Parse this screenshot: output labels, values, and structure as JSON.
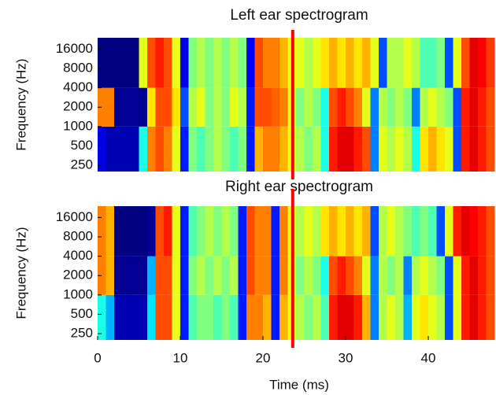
{
  "chart_data": [
    {
      "type": "spectrogram",
      "title": "Left ear spectrogram",
      "ylabel": "Frequency (Hz)",
      "colormap": "jet",
      "log_y": true,
      "xlim": [
        0,
        48
      ],
      "ylim": [
        200,
        24000
      ],
      "yticks": [
        250,
        500,
        1000,
        2000,
        4000,
        8000,
        16000
      ],
      "bins": [
        0,
        1,
        2,
        3,
        4,
        5,
        6,
        7,
        8,
        9,
        10,
        11,
        12,
        13,
        14,
        15,
        16,
        17,
        18,
        19,
        20,
        21,
        22,
        23,
        24,
        25,
        26,
        27,
        28,
        29,
        30,
        31,
        32,
        33,
        34,
        35,
        36,
        37,
        38,
        39,
        40,
        41,
        42,
        43,
        44,
        45,
        46,
        47,
        48
      ],
      "y_edges": [
        200,
        1000,
        4000,
        24000
      ],
      "z": [
        [
          0.1,
          0.05,
          0.05,
          0.05,
          0.05,
          0.4,
          0.75,
          0.8,
          0.75,
          0.6,
          0.15,
          0.5,
          0.45,
          0.5,
          0.55,
          0.5,
          0.45,
          0.5,
          0.15,
          0.7,
          0.75,
          0.75,
          0.7,
          0.6,
          0.55,
          0.5,
          0.55,
          0.4,
          0.85,
          0.9,
          0.9,
          0.85,
          0.8,
          0.25,
          0.6,
          0.55,
          0.6,
          0.55,
          0.4,
          0.65,
          0.7,
          0.65,
          0.6,
          0.2,
          0.85,
          0.9,
          0.85,
          0.8
        ],
        [
          0.75,
          0.75,
          0.02,
          0.02,
          0.02,
          0.02,
          0.65,
          0.8,
          0.8,
          0.65,
          0.2,
          0.55,
          0.6,
          0.5,
          0.55,
          0.5,
          0.6,
          0.55,
          0.15,
          0.8,
          0.8,
          0.78,
          0.75,
          0.6,
          0.5,
          0.55,
          0.5,
          0.4,
          0.8,
          0.85,
          0.8,
          0.75,
          0.6,
          0.25,
          0.55,
          0.5,
          0.55,
          0.5,
          0.25,
          0.55,
          0.6,
          0.55,
          0.5,
          0.2,
          0.85,
          0.9,
          0.85,
          0.8
        ],
        [
          0,
          0,
          0,
          0,
          0,
          0.6,
          0.8,
          0.85,
          0.8,
          0.6,
          0.1,
          0.5,
          0.55,
          0.5,
          0.55,
          0.5,
          0.55,
          0.5,
          0.12,
          0.8,
          0.75,
          0.75,
          0.7,
          0.6,
          0.6,
          0.55,
          0.6,
          0.65,
          0.7,
          0.65,
          0.7,
          0.65,
          0.7,
          0.6,
          0.2,
          0.55,
          0.55,
          0.6,
          0.55,
          0.45,
          0.45,
          0.5,
          0.2,
          0.6,
          0.8,
          0.9,
          0.88,
          0.82
        ]
      ],
      "vline": {
        "x": 23.6,
        "color": "#ff0000"
      }
    },
    {
      "type": "spectrogram",
      "title": "Right ear spectrogram",
      "ylabel": "Frequency (Hz)",
      "xlabel": "Time (ms)",
      "colormap": "jet",
      "log_y": true,
      "xlim": [
        0,
        48
      ],
      "ylim": [
        200,
        24000
      ],
      "xticks": [
        0,
        10,
        20,
        30,
        40
      ],
      "yticks": [
        250,
        500,
        1000,
        2000,
        4000,
        8000,
        16000
      ],
      "bins": [
        0,
        1,
        2,
        3,
        4,
        5,
        6,
        7,
        8,
        9,
        10,
        11,
        12,
        13,
        14,
        15,
        16,
        17,
        18,
        19,
        20,
        21,
        22,
        23,
        24,
        25,
        26,
        27,
        28,
        29,
        30,
        31,
        32,
        33,
        34,
        35,
        36,
        37,
        38,
        39,
        40,
        41,
        42,
        43,
        44,
        45,
        46,
        47,
        48
      ],
      "y_edges": [
        200,
        1000,
        4000,
        24000
      ],
      "z": [
        [
          0.4,
          0.3,
          0.05,
          0.05,
          0.05,
          0.05,
          0.35,
          0.8,
          0.8,
          0.6,
          0.15,
          0.45,
          0.5,
          0.5,
          0.45,
          0.5,
          0.45,
          0.15,
          0.75,
          0.75,
          0.7,
          0.15,
          0.7,
          0.6,
          0.55,
          0.5,
          0.55,
          0.45,
          0.85,
          0.9,
          0.9,
          0.85,
          0.7,
          0.25,
          0.55,
          0.6,
          0.55,
          0.3,
          0.6,
          0.65,
          0.6,
          0.55,
          0.2,
          0.6,
          0.85,
          0.9,
          0.85,
          0.8
        ],
        [
          0.75,
          0.7,
          0.02,
          0.02,
          0.02,
          0.02,
          0.3,
          0.8,
          0.8,
          0.6,
          0.15,
          0.5,
          0.55,
          0.5,
          0.55,
          0.5,
          0.55,
          0.15,
          0.8,
          0.75,
          0.75,
          0.15,
          0.75,
          0.6,
          0.5,
          0.55,
          0.5,
          0.4,
          0.8,
          0.85,
          0.8,
          0.75,
          0.6,
          0.25,
          0.55,
          0.5,
          0.55,
          0.25,
          0.55,
          0.6,
          0.55,
          0.5,
          0.2,
          0.6,
          0.85,
          0.9,
          0.85,
          0.8
        ],
        [
          0.75,
          0.7,
          0,
          0,
          0,
          0,
          0.02,
          0.8,
          0.85,
          0.6,
          0.15,
          0.45,
          0.5,
          0.55,
          0.5,
          0.55,
          0.5,
          0.15,
          0.8,
          0.75,
          0.75,
          0.15,
          0.75,
          0.6,
          0.55,
          0.6,
          0.55,
          0.65,
          0.7,
          0.65,
          0.7,
          0.65,
          0.7,
          0.2,
          0.55,
          0.6,
          0.55,
          0.5,
          0.45,
          0.5,
          0.45,
          0.2,
          0.6,
          0.85,
          0.9,
          0.88,
          0.85,
          0.8
        ]
      ],
      "vline": {
        "x": 23.6,
        "color": "#ff0000"
      }
    }
  ]
}
